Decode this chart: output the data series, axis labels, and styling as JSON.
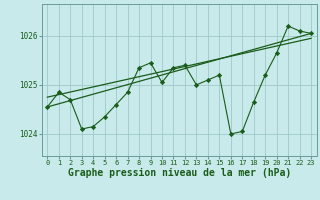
{
  "background_color": "#c8eaea",
  "grid_color": "#a0c8c8",
  "line_color": "#1a5c1a",
  "marker_color": "#1a5c1a",
  "xlabel": "Graphe pression niveau de la mer (hPa)",
  "xlabel_fontsize": 7.0,
  "yticks": [
    1024,
    1025,
    1026
  ],
  "xlim": [
    -0.5,
    23.5
  ],
  "ylim": [
    1023.55,
    1026.65
  ],
  "x_hours": [
    0,
    1,
    2,
    3,
    4,
    5,
    6,
    7,
    8,
    9,
    10,
    11,
    12,
    13,
    14,
    15,
    16,
    17,
    18,
    19,
    20,
    21,
    22,
    23
  ],
  "line1_x": [
    0,
    1,
    2,
    3,
    4,
    5,
    6,
    7,
    8,
    9,
    10,
    11,
    12,
    13,
    14,
    15,
    16,
    17,
    18,
    19,
    20,
    21,
    22,
    23
  ],
  "line1_y": [
    1024.55,
    1024.85,
    1024.7,
    1024.1,
    1024.15,
    1024.35,
    1024.6,
    1024.85,
    1025.35,
    1025.45,
    1025.05,
    1025.35,
    1025.4,
    1025.0,
    1025.1,
    1025.2,
    1024.0,
    1024.05,
    1024.65,
    1025.2,
    1025.65,
    1026.2,
    1026.1,
    1026.05
  ],
  "line2_x": [
    0,
    23
  ],
  "line2_y": [
    1024.55,
    1026.05
  ],
  "line3_x": [
    0,
    23
  ],
  "line3_y": [
    1024.75,
    1025.95
  ]
}
